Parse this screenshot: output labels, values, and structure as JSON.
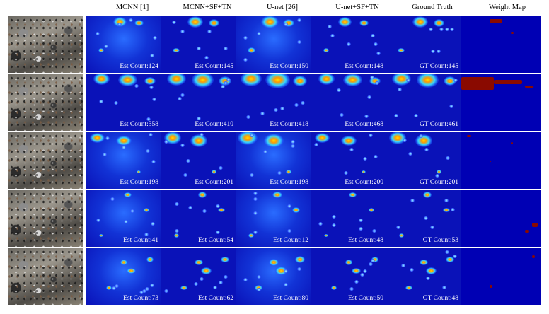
{
  "headers": [
    {
      "label": "MCNN [1]"
    },
    {
      "label": "MCNN+SF+TN"
    },
    {
      "label": "U-net [26]"
    },
    {
      "label": "U-net+SF+TN"
    },
    {
      "label": "Ground Truth"
    },
    {
      "label": "Weight Map"
    }
  ],
  "rows": [
    {
      "labels": [
        "Est  Count:124",
        "Est  Count:145",
        "Est  Count:150",
        "Est  Count:148",
        "GT  Count:145"
      ]
    },
    {
      "labels": [
        "Est  Count:358",
        "Est  Count:410",
        "Est  Count:418",
        "Est  Count:468",
        "GT  Count:461"
      ]
    },
    {
      "labels": [
        "Est  Count:198",
        "Est  Count:201",
        "Est  Count:198",
        "Est  Count:200",
        "GT  Count:201"
      ]
    },
    {
      "labels": [
        "Est  Count:41",
        "Est  Count:54",
        "Est  Count:12",
        "Est  Count:48",
        "GT  Count:53"
      ]
    },
    {
      "labels": [
        "Est  Count:73",
        "Est  Count:62",
        "Est  Count:80",
        "Est  Count:50",
        "GT  Count:48"
      ]
    }
  ],
  "colors": {
    "map_background": "#0a12b8",
    "hotspot": "#ffdd00",
    "weight_background": "#0000b4",
    "weight_spot": "#8a0a00"
  }
}
